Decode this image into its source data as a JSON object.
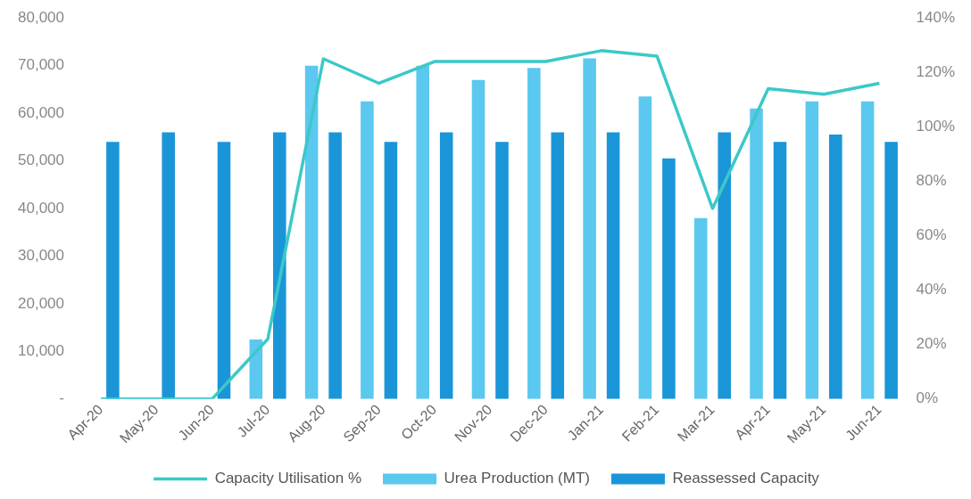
{
  "chart_data": {
    "type": "bar",
    "categories": [
      "Apr-20",
      "May-20",
      "Jun-20",
      "Jul-20",
      "Aug-20",
      "Sep-20",
      "Oct-20",
      "Nov-20",
      "Dec-20",
      "Jan-21",
      "Feb-21",
      "Mar-21",
      "Apr-21",
      "May-21",
      "Jun-21"
    ],
    "series": [
      {
        "name": "Urea Production (MT)",
        "color": "#5bc8ef",
        "values": [
          0,
          0,
          0,
          12500,
          70000,
          62500,
          70000,
          67000,
          69500,
          71500,
          63500,
          38000,
          61000,
          62500,
          62500
        ]
      },
      {
        "name": "Reassessed Capacity",
        "color": "#1a96d8",
        "values": [
          54000,
          56000,
          54000,
          56000,
          56000,
          54000,
          56000,
          54000,
          56000,
          56000,
          50500,
          56000,
          54000,
          55500,
          54000
        ]
      },
      {
        "name": "Capacity Utilisation %",
        "type": "line",
        "axis": "y2",
        "color": "#3cc8c8",
        "values": [
          0,
          0,
          0,
          22,
          125,
          116,
          124,
          124,
          124,
          128,
          126,
          70,
          114,
          112,
          116
        ]
      }
    ],
    "ylim": [
      0,
      80000
    ],
    "yticks": [
      {
        "value": 0,
        "label": "-"
      },
      {
        "value": 10000,
        "label": "10,000"
      },
      {
        "value": 20000,
        "label": "20,000"
      },
      {
        "value": 30000,
        "label": "30,000"
      },
      {
        "value": 40000,
        "label": "40,000"
      },
      {
        "value": 50000,
        "label": "50,000"
      },
      {
        "value": 60000,
        "label": "60,000"
      },
      {
        "value": 70000,
        "label": "70,000"
      },
      {
        "value": 80000,
        "label": "80,000"
      }
    ],
    "y2lim": [
      0,
      140
    ],
    "y2ticks": [
      {
        "value": 0,
        "label": "0%"
      },
      {
        "value": 20,
        "label": "20%"
      },
      {
        "value": 40,
        "label": "40%"
      },
      {
        "value": 60,
        "label": "60%"
      },
      {
        "value": 80,
        "label": "80%"
      },
      {
        "value": 100,
        "label": "100%"
      },
      {
        "value": 120,
        "label": "120%"
      },
      {
        "value": 140,
        "label": "140%"
      }
    ],
    "grid": false,
    "legend": "bottom",
    "marker": "none"
  }
}
